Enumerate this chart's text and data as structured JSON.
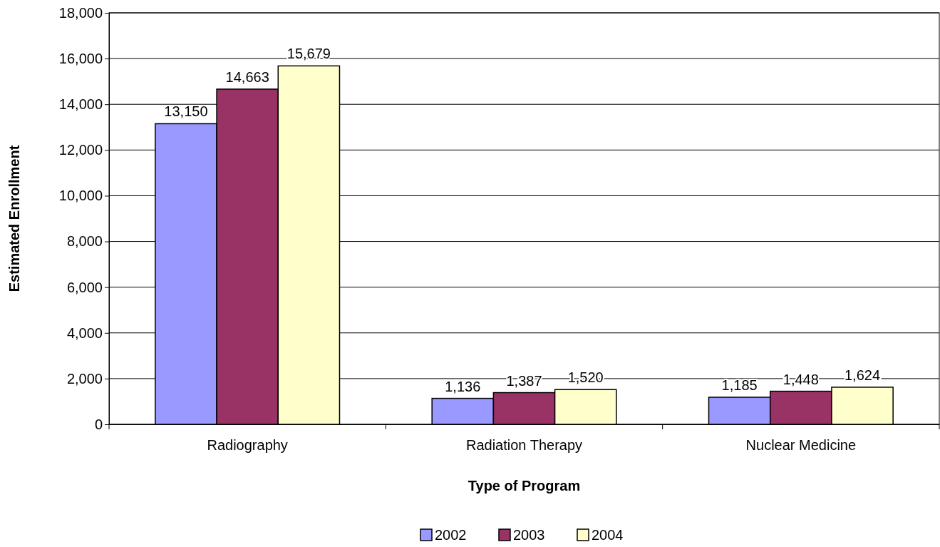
{
  "chart_data": {
    "type": "bar",
    "xlabel": "Type of Program",
    "ylabel": "Estimated Enrollment",
    "categories": [
      "Radiography",
      "Radiation Therapy",
      "Nuclear Medicine"
    ],
    "series": [
      {
        "name": "2002",
        "color": "#9999ff",
        "values": [
          13150,
          1136,
          1185
        ],
        "value_labels": [
          "13,150",
          "1,136",
          "1,185"
        ]
      },
      {
        "name": "2003",
        "color": "#993366",
        "values": [
          14663,
          1387,
          1448
        ],
        "value_labels": [
          "14,663",
          "1,387",
          "1,448"
        ]
      },
      {
        "name": "2004",
        "color": "#ffffcc",
        "values": [
          15679,
          1520,
          1624
        ],
        "value_labels": [
          "15,679",
          "1,520",
          "1,624"
        ]
      }
    ],
    "ylim": [
      0,
      18000
    ],
    "yticks": [
      {
        "value": 0,
        "label": "0"
      },
      {
        "value": 2000,
        "label": "2,000"
      },
      {
        "value": 4000,
        "label": "4,000"
      },
      {
        "value": 6000,
        "label": "6,000"
      },
      {
        "value": 8000,
        "label": "8,000"
      },
      {
        "value": 10000,
        "label": "10,000"
      },
      {
        "value": 12000,
        "label": "12,000"
      },
      {
        "value": 14000,
        "label": "14,000"
      },
      {
        "value": 16000,
        "label": "16,000"
      },
      {
        "value": 18000,
        "label": "18,000"
      }
    ],
    "grid": "y",
    "legend": "bottom"
  }
}
